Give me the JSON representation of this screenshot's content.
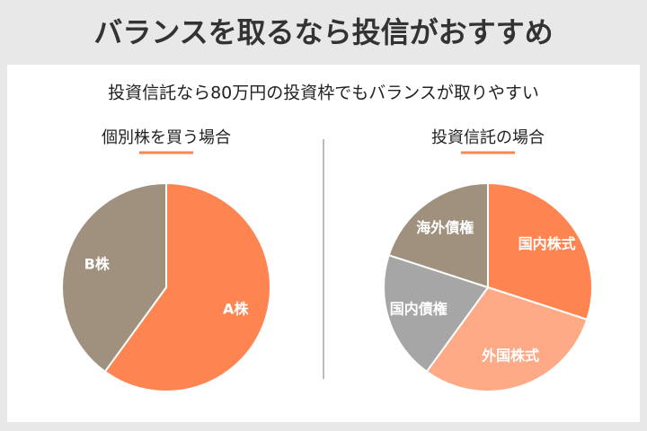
{
  "title": "バランスを取るなら投信がおすすめ",
  "subtitle": "投資信託なら80万円の投資枠でもバランスが取りやすい",
  "chart_data": [
    {
      "type": "pie",
      "title": "個別株を買う場合",
      "categories": [
        "A株",
        "B株"
      ],
      "values": [
        60,
        40
      ],
      "colors": [
        "#fe8552",
        "#a0917f"
      ]
    },
    {
      "type": "pie",
      "title": "投資信託の場合",
      "categories": [
        "国内株式",
        "外国株式",
        "国内債権",
        "海外債権"
      ],
      "values": [
        30,
        30,
        20,
        20
      ],
      "colors": [
        "#fe8552",
        "#feaa87",
        "#a6a6a6",
        "#a0917f"
      ]
    }
  ]
}
